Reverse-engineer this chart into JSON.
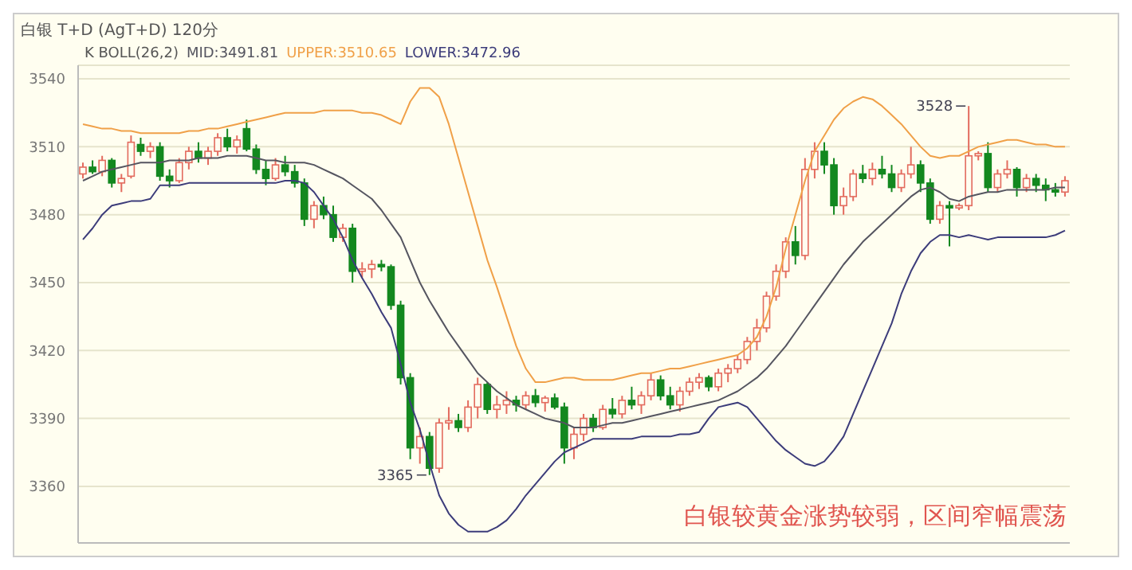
{
  "chart_data": {
    "type": "candlestick",
    "title": "白银 T+D (AgT+D) 120分",
    "legend_title": "K  BOLL(26,2)",
    "legend": "top left",
    "grid": "y",
    "tick_labels": "y",
    "ylim": [
      3335,
      3546
    ],
    "yticks": [
      3360,
      3390,
      3420,
      3450,
      3480,
      3510,
      3540
    ],
    "categories": [
      null,
      null,
      null,
      null,
      null,
      null,
      null,
      null,
      null,
      null,
      null,
      null,
      null,
      null,
      null,
      null,
      null,
      null,
      null,
      null,
      null,
      null,
      null,
      null,
      null,
      null,
      null,
      null,
      null,
      null,
      null,
      null,
      null,
      null,
      null,
      null,
      null,
      null,
      null,
      null,
      null,
      null,
      null,
      null,
      null,
      null,
      null,
      null,
      null,
      null,
      null,
      null,
      null,
      null,
      null,
      null,
      null,
      null,
      null,
      null,
      null,
      null,
      null,
      null,
      null,
      null,
      null,
      null,
      null,
      null,
      null,
      null,
      null,
      null,
      null,
      null,
      null,
      null,
      null,
      null,
      null,
      null,
      null,
      null,
      null,
      null,
      null,
      null,
      null,
      null,
      null,
      null,
      null,
      null,
      null,
      null,
      null,
      null,
      null,
      null,
      null,
      null,
      null
    ],
    "ohlc": [
      [
        3498,
        3503,
        3496,
        3501
      ],
      [
        3501,
        3504,
        3498,
        3499
      ],
      [
        3499,
        3506,
        3497,
        3504
      ],
      [
        3504,
        3505,
        3492,
        3494
      ],
      [
        3494,
        3498,
        3490,
        3496
      ],
      [
        3497,
        3515,
        3496,
        3512
      ],
      [
        3511,
        3514,
        3506,
        3508
      ],
      [
        3508,
        3512,
        3505,
        3510
      ],
      [
        3510,
        3512,
        3495,
        3497
      ],
      [
        3497,
        3500,
        3492,
        3495
      ],
      [
        3495,
        3505,
        3494,
        3503
      ],
      [
        3503,
        3510,
        3500,
        3508
      ],
      [
        3508,
        3512,
        3503,
        3505
      ],
      [
        3505,
        3510,
        3502,
        3508
      ],
      [
        3508,
        3516,
        3506,
        3514
      ],
      [
        3514,
        3518,
        3508,
        3510
      ],
      [
        3510,
        3515,
        3507,
        3513
      ],
      [
        3518,
        3522,
        3508,
        3509
      ],
      [
        3509,
        3511,
        3498,
        3500
      ],
      [
        3500,
        3504,
        3493,
        3496
      ],
      [
        3496,
        3505,
        3495,
        3502
      ],
      [
        3502,
        3506,
        3497,
        3499
      ],
      [
        3499,
        3502,
        3492,
        3494
      ],
      [
        3494,
        3496,
        3475,
        3478
      ],
      [
        3478,
        3486,
        3474,
        3484
      ],
      [
        3484,
        3488,
        3478,
        3480
      ],
      [
        3480,
        3484,
        3468,
        3470
      ],
      [
        3470,
        3476,
        3468,
        3474
      ],
      [
        3474,
        3476,
        3450,
        3455
      ],
      [
        3455,
        3459,
        3452,
        3456
      ],
      [
        3456,
        3460,
        3452,
        3458
      ],
      [
        3458,
        3460,
        3455,
        3457
      ],
      [
        3457,
        3458,
        3438,
        3440
      ],
      [
        3440,
        3442,
        3405,
        3408
      ],
      [
        3408,
        3410,
        3372,
        3377
      ],
      [
        3377,
        3386,
        3370,
        3382
      ],
      [
        3382,
        3384,
        3365,
        3368
      ],
      [
        3368,
        3390,
        3366,
        3388
      ],
      [
        3388,
        3395,
        3385,
        3389
      ],
      [
        3389,
        3392,
        3384,
        3386
      ],
      [
        3386,
        3398,
        3384,
        3395
      ],
      [
        3395,
        3408,
        3390,
        3405
      ],
      [
        3405,
        3406,
        3392,
        3394
      ],
      [
        3394,
        3400,
        3390,
        3396
      ],
      [
        3396,
        3402,
        3392,
        3398
      ],
      [
        3398,
        3400,
        3393,
        3396
      ],
      [
        3396,
        3402,
        3394,
        3400
      ],
      [
        3400,
        3403,
        3395,
        3397
      ],
      [
        3397,
        3400,
        3393,
        3399
      ],
      [
        3399,
        3401,
        3394,
        3395
      ],
      [
        3395,
        3397,
        3370,
        3377
      ],
      [
        3377,
        3386,
        3372,
        3383
      ],
      [
        3383,
        3392,
        3380,
        3390
      ],
      [
        3390,
        3392,
        3384,
        3386
      ],
      [
        3386,
        3396,
        3385,
        3394
      ],
      [
        3394,
        3399,
        3390,
        3392
      ],
      [
        3392,
        3400,
        3390,
        3398
      ],
      [
        3398,
        3404,
        3394,
        3396
      ],
      [
        3396,
        3402,
        3392,
        3400
      ],
      [
        3400,
        3410,
        3398,
        3407
      ],
      [
        3407,
        3409,
        3398,
        3400
      ],
      [
        3400,
        3404,
        3394,
        3396
      ],
      [
        3396,
        3404,
        3393,
        3402
      ],
      [
        3402,
        3408,
        3400,
        3406
      ],
      [
        3406,
        3410,
        3403,
        3408
      ],
      [
        3408,
        3409,
        3402,
        3404
      ],
      [
        3404,
        3412,
        3402,
        3410
      ],
      [
        3410,
        3414,
        3406,
        3412
      ],
      [
        3412,
        3418,
        3410,
        3416
      ],
      [
        3416,
        3426,
        3414,
        3424
      ],
      [
        3424,
        3434,
        3420,
        3430
      ],
      [
        3430,
        3446,
        3428,
        3444
      ],
      [
        3444,
        3458,
        3442,
        3455
      ],
      [
        3455,
        3470,
        3452,
        3468
      ],
      [
        3468,
        3475,
        3458,
        3462
      ],
      [
        3462,
        3505,
        3460,
        3500
      ],
      [
        3500,
        3512,
        3496,
        3508
      ],
      [
        3508,
        3512,
        3498,
        3502
      ],
      [
        3502,
        3505,
        3480,
        3484
      ],
      [
        3484,
        3492,
        3480,
        3488
      ],
      [
        3488,
        3500,
        3486,
        3498
      ],
      [
        3498,
        3502,
        3494,
        3496
      ],
      [
        3496,
        3503,
        3493,
        3500
      ],
      [
        3500,
        3506,
        3496,
        3498
      ],
      [
        3498,
        3502,
        3490,
        3492
      ],
      [
        3492,
        3500,
        3490,
        3498
      ],
      [
        3498,
        3510,
        3496,
        3502
      ],
      [
        3502,
        3504,
        3490,
        3494
      ],
      [
        3494,
        3496,
        3476,
        3478
      ],
      [
        3478,
        3486,
        3476,
        3484
      ],
      [
        3484,
        3486,
        3466,
        3483
      ],
      [
        3483,
        3485,
        3482,
        3484
      ],
      [
        3484,
        3528,
        3482,
        3506
      ],
      [
        3506,
        3508,
        3504,
        3507
      ],
      [
        3507,
        3512,
        3490,
        3492
      ],
      [
        3492,
        3500,
        3490,
        3498
      ],
      [
        3498,
        3504,
        3496,
        3500
      ],
      [
        3500,
        3501,
        3488,
        3492
      ],
      [
        3492,
        3498,
        3490,
        3496
      ],
      [
        3496,
        3498,
        3490,
        3493
      ],
      [
        3493,
        3496,
        3486,
        3491
      ],
      [
        3491,
        3494,
        3488,
        3490
      ],
      [
        3490,
        3497,
        3488,
        3495
      ]
    ],
    "colors": [
      "#e36b5e",
      "#13881f",
      "#e36b5e",
      "#13881f",
      "#e36b5e",
      "#e36b5e",
      "#13881f",
      "#e36b5e",
      "#13881f",
      "#13881f",
      "#e36b5e",
      "#e36b5e",
      "#13881f",
      "#e36b5e",
      "#e36b5e",
      "#13881f",
      "#e36b5e",
      "#13881f",
      "#13881f",
      "#13881f",
      "#e36b5e",
      "#13881f",
      "#13881f",
      "#13881f",
      "#e36b5e",
      "#13881f",
      "#13881f",
      "#e36b5e",
      "#13881f",
      "#e36b5e",
      "#e36b5e",
      "#13881f",
      "#13881f",
      "#13881f",
      "#13881f",
      "#e36b5e",
      "#13881f",
      "#e36b5e",
      "#e36b5e",
      "#13881f",
      "#e36b5e",
      "#e36b5e",
      "#13881f",
      "#e36b5e",
      "#e36b5e",
      "#13881f",
      "#e36b5e",
      "#13881f",
      "#e36b5e",
      "#13881f",
      "#13881f",
      "#e36b5e",
      "#e36b5e",
      "#13881f",
      "#e36b5e",
      "#13881f",
      "#e36b5e",
      "#13881f",
      "#e36b5e",
      "#e36b5e",
      "#13881f",
      "#13881f",
      "#e36b5e",
      "#e36b5e",
      "#e36b5e",
      "#13881f",
      "#e36b5e",
      "#e36b5e",
      "#e36b5e",
      "#e36b5e",
      "#e36b5e",
      "#e36b5e",
      "#e36b5e",
      "#e36b5e",
      "#13881f",
      "#e36b5e",
      "#e36b5e",
      "#13881f",
      "#13881f",
      "#e36b5e",
      "#e36b5e",
      "#13881f",
      "#e36b5e",
      "#13881f",
      "#13881f",
      "#e36b5e",
      "#e36b5e",
      "#13881f",
      "#13881f",
      "#e36b5e",
      "#13881f",
      "#e36b5e",
      "#e36b5e",
      "#e36b5e",
      "#13881f",
      "#e36b5e",
      "#e36b5e",
      "#13881f",
      "#e36b5e",
      "#13881f",
      "#13881f",
      "#13881f",
      "#e36b5e"
    ],
    "series": [
      {
        "type": "line",
        "name": "MID:3491.81",
        "color": "#555560",
        "values": [
          3495,
          3497,
          3499,
          3500,
          3501,
          3502,
          3503,
          3503,
          3503,
          3504,
          3504,
          3504,
          3505,
          3505,
          3505,
          3506,
          3506,
          3506,
          3505,
          3504,
          3504,
          3503,
          3503,
          3503,
          3502,
          3500,
          3498,
          3496,
          3493,
          3490,
          3487,
          3482,
          3476,
          3470,
          3460,
          3450,
          3442,
          3435,
          3428,
          3422,
          3416,
          3410,
          3406,
          3402,
          3399,
          3396,
          3394,
          3392,
          3390,
          3389,
          3388,
          3386,
          3386,
          3386,
          3387,
          3388,
          3388,
          3389,
          3390,
          3391,
          3392,
          3393,
          3394,
          3395,
          3396,
          3397,
          3398,
          3400,
          3402,
          3405,
          3408,
          3412,
          3417,
          3422,
          3428,
          3434,
          3440,
          3446,
          3452,
          3458,
          3463,
          3468,
          3472,
          3476,
          3480,
          3484,
          3488,
          3491,
          3492,
          3490,
          3487,
          3486,
          3488,
          3489,
          3490,
          3490,
          3491,
          3491,
          3491,
          3491,
          3491,
          3492,
          3492
        ]
      },
      {
        "type": "line",
        "name": "UPPER:3510.65",
        "color": "#f0a048",
        "values": [
          3520,
          3519,
          3518,
          3518,
          3517,
          3517,
          3516,
          3516,
          3516,
          3516,
          3516,
          3517,
          3517,
          3518,
          3518,
          3519,
          3520,
          3521,
          3522,
          3523,
          3524,
          3525,
          3525,
          3525,
          3525,
          3526,
          3526,
          3526,
          3526,
          3525,
          3525,
          3524,
          3522,
          3520,
          3530,
          3536,
          3536,
          3532,
          3520,
          3505,
          3490,
          3475,
          3460,
          3448,
          3435,
          3422,
          3412,
          3406,
          3406,
          3407,
          3408,
          3408,
          3407,
          3407,
          3407,
          3407,
          3408,
          3409,
          3410,
          3410,
          3411,
          3412,
          3412,
          3413,
          3414,
          3415,
          3416,
          3417,
          3418,
          3421,
          3426,
          3435,
          3448,
          3465,
          3480,
          3495,
          3508,
          3515,
          3522,
          3527,
          3530,
          3532,
          3531,
          3528,
          3524,
          3520,
          3515,
          3510,
          3506,
          3505,
          3506,
          3506,
          3508,
          3510,
          3511,
          3512,
          3513,
          3513,
          3512,
          3511,
          3511,
          3510,
          3510
        ]
      },
      {
        "type": "line",
        "name": "LOWER:3472.96",
        "color": "#3c3c7a",
        "values": [
          3469,
          3474,
          3480,
          3484,
          3485,
          3486,
          3486,
          3487,
          3493,
          3493,
          3493,
          3494,
          3494,
          3494,
          3494,
          3494,
          3494,
          3494,
          3494,
          3494,
          3494,
          3495,
          3495,
          3494,
          3490,
          3484,
          3478,
          3470,
          3460,
          3452,
          3445,
          3437,
          3430,
          3414,
          3397,
          3385,
          3370,
          3356,
          3348,
          3343,
          3340,
          3340,
          3340,
          3342,
          3345,
          3350,
          3356,
          3361,
          3366,
          3371,
          3375,
          3377,
          3379,
          3381,
          3381,
          3381,
          3381,
          3381,
          3382,
          3382,
          3382,
          3382,
          3383,
          3383,
          3384,
          3390,
          3395,
          3396,
          3397,
          3395,
          3390,
          3385,
          3380,
          3376,
          3373,
          3370,
          3369,
          3371,
          3376,
          3382,
          3392,
          3402,
          3412,
          3422,
          3432,
          3445,
          3455,
          3463,
          3468,
          3471,
          3471,
          3470,
          3471,
          3470,
          3469,
          3470,
          3470,
          3470,
          3470,
          3470,
          3470,
          3471,
          3473
        ]
      }
    ],
    "annotations": [
      "3528",
      "3365",
      "白银较黄金涨势较弱，区间窄幅震荡"
    ]
  }
}
